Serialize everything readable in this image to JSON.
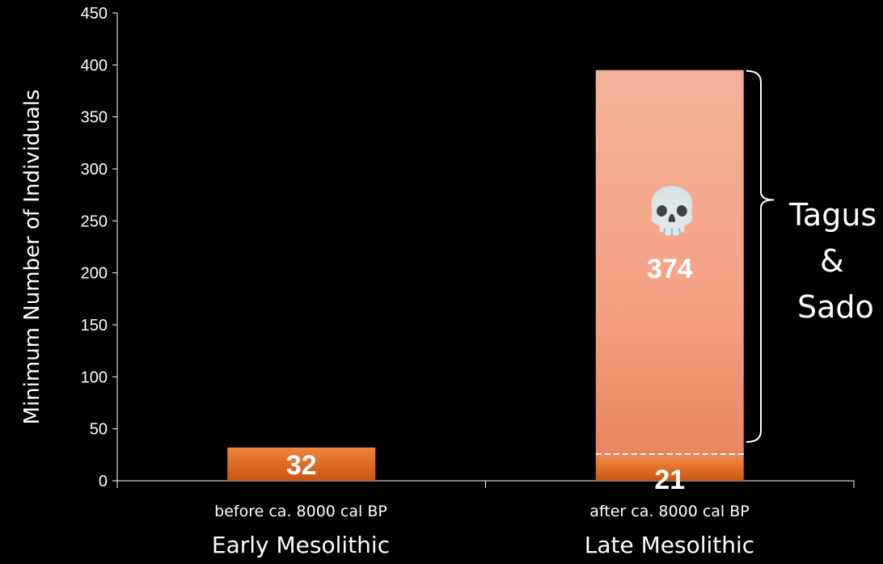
{
  "chart_data": {
    "type": "bar",
    "ylabel": "Minimum Number of Individuals",
    "ylim": [
      0,
      450
    ],
    "yticks": [
      "0",
      "50",
      "100",
      "150",
      "200",
      "250",
      "300",
      "350",
      "400",
      "450"
    ],
    "categories": [
      "Early Mesolithic",
      "Late Mesolithic"
    ],
    "sublabels": [
      "before ca. 8000 cal BP",
      "after ca. 8000 cal BP"
    ],
    "bars": [
      {
        "category": "Early Mesolithic",
        "segments": [
          {
            "value": 32,
            "label": "32",
            "color": "#e26a1e"
          }
        ]
      },
      {
        "category": "Late Mesolithic",
        "segments": [
          {
            "value": 21,
            "label": "21",
            "color": "#e26a1e"
          },
          {
            "value": 374,
            "label": "374",
            "color": "#f4a58a"
          }
        ]
      }
    ],
    "annotation": {
      "lines": [
        "Tagus",
        "&",
        "Sado"
      ],
      "icon": "skull-icon"
    },
    "colors": {
      "background": "#000000",
      "axis": "#ffffff",
      "bar_dark": "#e26a1e",
      "bar_light": "#f4a58a"
    }
  }
}
